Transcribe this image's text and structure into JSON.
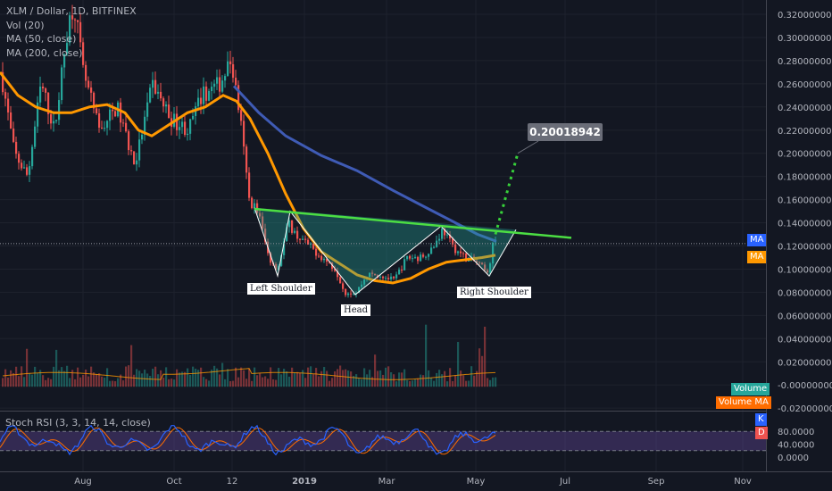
{
  "header": {
    "title": "XLM / Dollar, 1D, BITFINEX",
    "indicators": [
      "Vol (20)",
      "MA (50, close)",
      "MA (200, close)"
    ]
  },
  "rsi": {
    "title": "Stoch RSI (3, 3, 14, 14, close)",
    "badges": [
      "K",
      "D"
    ],
    "ticks": [
      "80.0000",
      "40.0000",
      "0.0000"
    ],
    "levels": [
      80,
      20
    ],
    "k_color": "#2962ff",
    "d_color": "#ff6d00"
  },
  "badges": {
    "ma200": {
      "label": "MA",
      "color": "#2962ff"
    },
    "ma50": {
      "label": "MA",
      "color": "#ff9800"
    },
    "volume": {
      "label": "Volume",
      "color": "#26a69a"
    },
    "volume_ma": {
      "label": "Volume MA",
      "color": "#ff6d00"
    }
  },
  "annotations": {
    "left_shoulder": "Left Shoulder",
    "head": "Head",
    "right_shoulder": "Right Shoulder",
    "target": "0.20018942"
  },
  "chart_data": {
    "type": "candlestick",
    "symbol": "XLM / Dollar",
    "interval": "1D",
    "exchange": "BITFINEX",
    "x_labels": [
      "Aug",
      "Oct",
      "12",
      "2019",
      "Mar",
      "May",
      "Jul",
      "Sep",
      "Nov"
    ],
    "y_ticks": [
      "0.32000000",
      "0.30000000",
      "0.28000000",
      "0.26000000",
      "0.24000000",
      "0.22000000",
      "0.20000000",
      "0.18000000",
      "0.16000000",
      "0.14000000",
      "0.12000000",
      "0.10000000",
      "0.08000000",
      "0.06000000",
      "0.04000000",
      "0.02000000",
      "-0.00000000",
      "-0.02000000"
    ],
    "price_range": [
      -0.02,
      0.32
    ],
    "price_path": [
      [
        0,
        0.27
      ],
      [
        15,
        0.2
      ],
      [
        30,
        0.18
      ],
      [
        45,
        0.26
      ],
      [
        60,
        0.22
      ],
      [
        75,
        0.31
      ],
      [
        82,
        0.33
      ],
      [
        92,
        0.27
      ],
      [
        110,
        0.22
      ],
      [
        130,
        0.24
      ],
      [
        150,
        0.19
      ],
      [
        170,
        0.26
      ],
      [
        190,
        0.23
      ],
      [
        210,
        0.22
      ],
      [
        225,
        0.25
      ],
      [
        245,
        0.26
      ],
      [
        258,
        0.28
      ],
      [
        268,
        0.23
      ],
      [
        278,
        0.16
      ],
      [
        288,
        0.15
      ],
      [
        300,
        0.11
      ],
      [
        310,
        0.1
      ],
      [
        322,
        0.14
      ],
      [
        330,
        0.13
      ],
      [
        345,
        0.12
      ],
      [
        360,
        0.11
      ],
      [
        375,
        0.1
      ],
      [
        385,
        0.08
      ],
      [
        398,
        0.08
      ],
      [
        410,
        0.095
      ],
      [
        425,
        0.095
      ],
      [
        440,
        0.09
      ],
      [
        455,
        0.11
      ],
      [
        470,
        0.11
      ],
      [
        485,
        0.12
      ],
      [
        495,
        0.135
      ],
      [
        505,
        0.12
      ],
      [
        520,
        0.11
      ],
      [
        535,
        0.105
      ],
      [
        545,
        0.095
      ],
      [
        551,
        0.12
      ],
      [
        555,
        0.13
      ]
    ],
    "ma50_path": [
      [
        0,
        0.27
      ],
      [
        20,
        0.25
      ],
      [
        40,
        0.24
      ],
      [
        60,
        0.235
      ],
      [
        80,
        0.235
      ],
      [
        100,
        0.24
      ],
      [
        120,
        0.242
      ],
      [
        140,
        0.235
      ],
      [
        155,
        0.22
      ],
      [
        170,
        0.215
      ],
      [
        190,
        0.225
      ],
      [
        210,
        0.235
      ],
      [
        230,
        0.24
      ],
      [
        250,
        0.25
      ],
      [
        265,
        0.245
      ],
      [
        280,
        0.23
      ],
      [
        300,
        0.2
      ],
      [
        320,
        0.165
      ],
      [
        340,
        0.135
      ],
      [
        360,
        0.115
      ],
      [
        380,
        0.105
      ],
      [
        400,
        0.095
      ],
      [
        420,
        0.09
      ],
      [
        440,
        0.088
      ],
      [
        460,
        0.092
      ],
      [
        480,
        0.1
      ],
      [
        500,
        0.106
      ],
      [
        520,
        0.108
      ],
      [
        540,
        0.11
      ],
      [
        555,
        0.112
      ]
    ],
    "ma200_path": [
      [
        262,
        0.258
      ],
      [
        290,
        0.235
      ],
      [
        320,
        0.215
      ],
      [
        360,
        0.198
      ],
      [
        400,
        0.185
      ],
      [
        440,
        0.168
      ],
      [
        480,
        0.152
      ],
      [
        510,
        0.14
      ],
      [
        535,
        0.13
      ],
      [
        556,
        0.124
      ]
    ],
    "neckline": [
      [
        285,
        0.152
      ],
      [
        640,
        0.127
      ]
    ],
    "target_projection": [
      [
        555,
        0.13
      ],
      [
        580,
        0.2
      ]
    ],
    "target_value": 0.20018942,
    "pattern_polyline": [
      [
        285,
        0.153
      ],
      [
        311,
        0.094
      ],
      [
        325,
        0.15
      ],
      [
        398,
        0.078
      ],
      [
        494,
        0.137
      ],
      [
        548,
        0.094
      ],
      [
        578,
        0.134
      ]
    ],
    "horizontal_line": 0.122
  }
}
